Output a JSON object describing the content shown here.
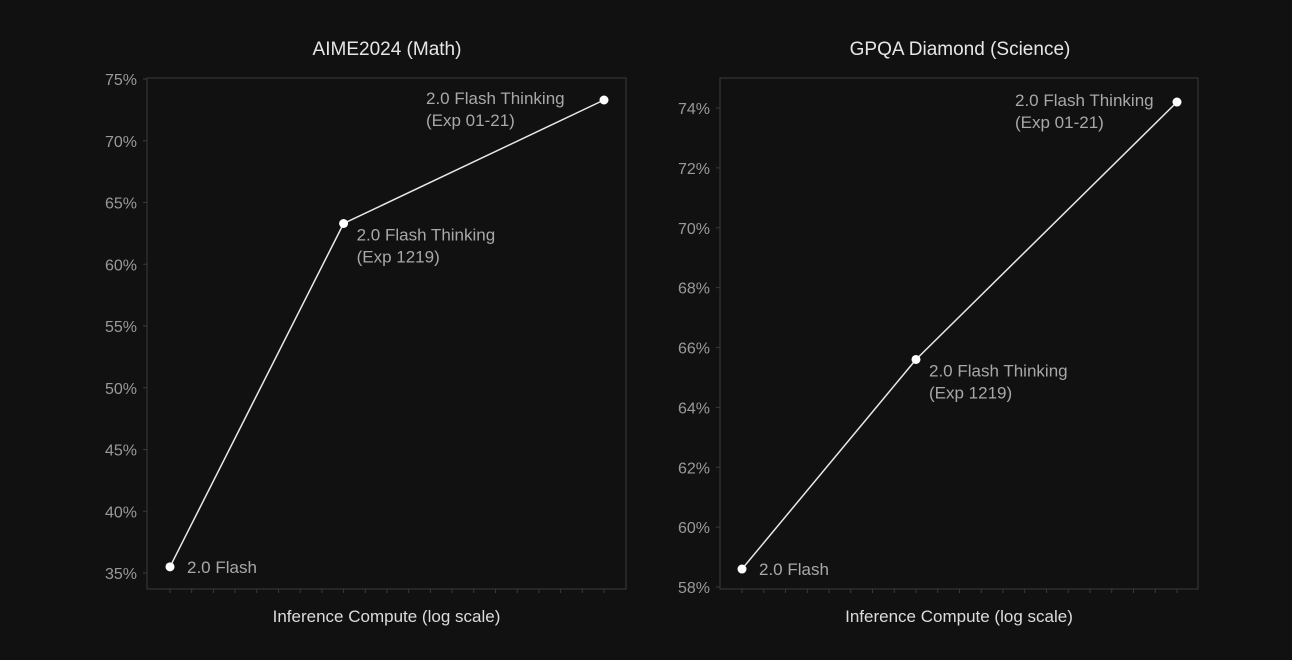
{
  "colors": {
    "background": "#111111",
    "panel_border": "#3a3a3a",
    "title": "#e6e6e6",
    "tick_label": "#9a9a9a",
    "axis_label": "#dcdcdc",
    "line": "#e8e8e8",
    "point": "#ffffff",
    "annotation": "#a8a8a8"
  },
  "chart_data": [
    {
      "type": "line",
      "title": "AIME2024 (Math)",
      "xlabel": "Inference Compute (log scale)",
      "ylabel": "",
      "x_scale": "log",
      "yticks": [
        35,
        40,
        45,
        50,
        55,
        60,
        65,
        70,
        75
      ],
      "ytick_labels": [
        "35%",
        "40%",
        "45%",
        "50%",
        "55%",
        "60%",
        "65%",
        "70%",
        "75%"
      ],
      "ylim": [
        35,
        75
      ],
      "grid": false,
      "series": [
        {
          "points": [
            {
              "x_fraction": 0.0,
              "y": 35.5,
              "label": [
                "2.0 Flash"
              ]
            },
            {
              "x_fraction": 0.4,
              "y": 63.3,
              "label": [
                "2.0 Flash Thinking",
                "(Exp 1219)"
              ]
            },
            {
              "x_fraction": 1.0,
              "y": 73.3,
              "label": [
                "2.0 Flash Thinking",
                "(Exp 01-21)"
              ]
            }
          ]
        }
      ]
    },
    {
      "type": "line",
      "title": "GPQA Diamond (Science)",
      "xlabel": "Inference Compute (log scale)",
      "ylabel": "",
      "x_scale": "log",
      "yticks": [
        58,
        60,
        62,
        64,
        66,
        68,
        70,
        72,
        74
      ],
      "ytick_labels": [
        "58%",
        "60%",
        "62%",
        "64%",
        "66%",
        "68%",
        "70%",
        "72%",
        "74%"
      ],
      "ylim": [
        58,
        75
      ],
      "grid": false,
      "series": [
        {
          "points": [
            {
              "x_fraction": 0.0,
              "y": 58.6,
              "label": [
                "2.0 Flash"
              ]
            },
            {
              "x_fraction": 0.4,
              "y": 65.6,
              "label": [
                "2.0 Flash Thinking",
                "(Exp 1219)"
              ]
            },
            {
              "x_fraction": 1.0,
              "y": 74.2,
              "label": [
                "2.0 Flash Thinking",
                "(Exp 01-21)"
              ]
            }
          ]
        }
      ]
    }
  ]
}
